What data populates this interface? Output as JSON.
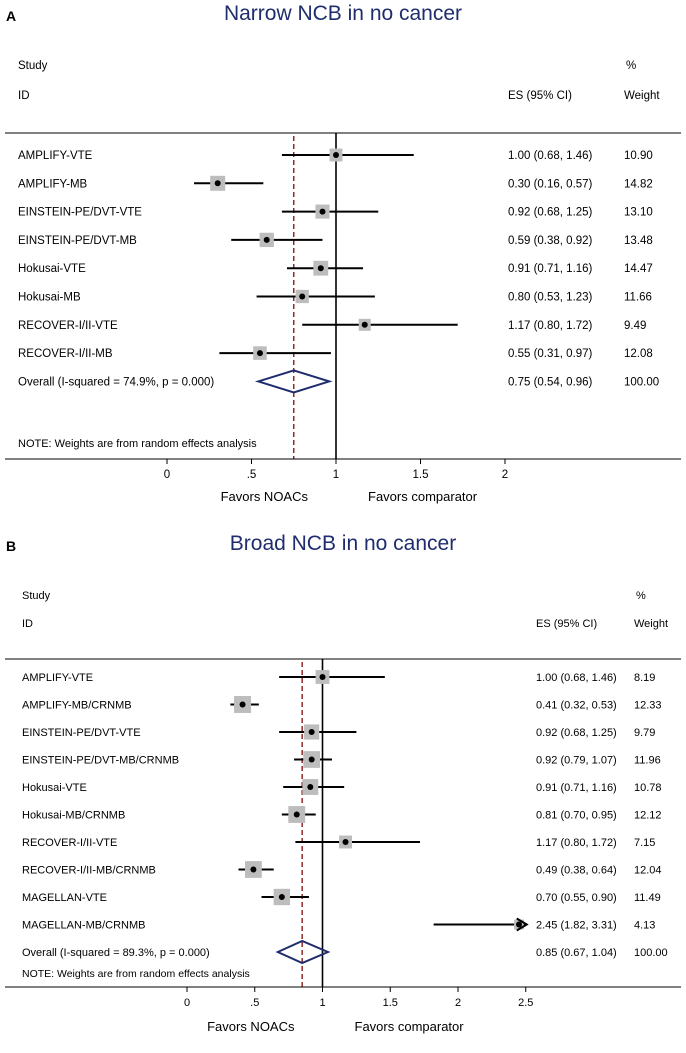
{
  "chart_data": [
    {
      "type": "forest",
      "panel_label": "A",
      "title": "Narrow NCB in no cancer",
      "header": {
        "study": "Study",
        "id": "ID",
        "es": "ES (95% CI)",
        "pct": "%",
        "weight": "Weight"
      },
      "studies": [
        {
          "name": "AMPLIFY-VTE",
          "es": 1.0,
          "lo": 0.68,
          "hi": 1.46,
          "es_text": "1.00 (0.68, 1.46)",
          "weight": 10.9,
          "weight_text": "10.90"
        },
        {
          "name": "AMPLIFY-MB",
          "es": 0.3,
          "lo": 0.16,
          "hi": 0.57,
          "es_text": "0.30 (0.16, 0.57)",
          "weight": 14.82,
          "weight_text": "14.82"
        },
        {
          "name": "EINSTEIN-PE/DVT-VTE",
          "es": 0.92,
          "lo": 0.68,
          "hi": 1.25,
          "es_text": "0.92 (0.68, 1.25)",
          "weight": 13.1,
          "weight_text": "13.10"
        },
        {
          "name": "EINSTEIN-PE/DVT-MB",
          "es": 0.59,
          "lo": 0.38,
          "hi": 0.92,
          "es_text": "0.59 (0.38, 0.92)",
          "weight": 13.48,
          "weight_text": "13.48"
        },
        {
          "name": "Hokusai-VTE",
          "es": 0.91,
          "lo": 0.71,
          "hi": 1.16,
          "es_text": "0.91 (0.71, 1.16)",
          "weight": 14.47,
          "weight_text": "14.47"
        },
        {
          "name": "Hokusai-MB",
          "es": 0.8,
          "lo": 0.53,
          "hi": 1.23,
          "es_text": "0.80 (0.53, 1.23)",
          "weight": 11.66,
          "weight_text": "11.66"
        },
        {
          "name": "RECOVER-I/II-VTE",
          "es": 1.17,
          "lo": 0.8,
          "hi": 1.72,
          "es_text": "1.17 (0.80, 1.72)",
          "weight": 9.49,
          "weight_text": "9.49"
        },
        {
          "name": "RECOVER-I/II-MB",
          "es": 0.55,
          "lo": 0.31,
          "hi": 0.97,
          "es_text": "0.55 (0.31, 0.97)",
          "weight": 12.08,
          "weight_text": "12.08"
        }
      ],
      "overall": {
        "label": "Overall  (I-squared = 74.9%, p = 0.000)",
        "es": 0.75,
        "lo": 0.54,
        "hi": 0.96,
        "es_text": "0.75 (0.54, 0.96)",
        "weight_text": "100.00"
      },
      "note": "NOTE: Weights are from random effects analysis",
      "xticks": [
        0,
        0.5,
        1,
        1.5,
        2
      ],
      "xtick_labels": [
        "0",
        ".5",
        "1",
        "1.5",
        "2"
      ],
      "xlim": [
        0,
        2
      ],
      "favors_left": "Favors NOACs",
      "favors_right": "Favors comparator",
      "colors": {
        "title": "#1f2d6e",
        "ref_line": "#8b1a1a",
        "box": "#bdbdbd",
        "diamond": "#1f2d6e"
      }
    },
    {
      "type": "forest",
      "panel_label": "B",
      "title": "Broad NCB in no cancer",
      "header": {
        "study": "Study",
        "id": "ID",
        "es": "ES (95% CI)",
        "pct": "%",
        "weight": "Weight"
      },
      "studies": [
        {
          "name": "AMPLIFY-VTE",
          "es": 1.0,
          "lo": 0.68,
          "hi": 1.46,
          "es_text": "1.00 (0.68, 1.46)",
          "weight": 8.19,
          "weight_text": "8.19"
        },
        {
          "name": "AMPLIFY-MB/CRNMB",
          "es": 0.41,
          "lo": 0.32,
          "hi": 0.53,
          "es_text": "0.41 (0.32, 0.53)",
          "weight": 12.33,
          "weight_text": "12.33"
        },
        {
          "name": "EINSTEIN-PE/DVT-VTE",
          "es": 0.92,
          "lo": 0.68,
          "hi": 1.25,
          "es_text": "0.92 (0.68, 1.25)",
          "weight": 9.79,
          "weight_text": "9.79"
        },
        {
          "name": "EINSTEIN-PE/DVT-MB/CRNMB",
          "es": 0.92,
          "lo": 0.79,
          "hi": 1.07,
          "es_text": "0.92 (0.79, 1.07)",
          "weight": 11.96,
          "weight_text": "11.96"
        },
        {
          "name": "Hokusai-VTE",
          "es": 0.91,
          "lo": 0.71,
          "hi": 1.16,
          "es_text": "0.91 (0.71, 1.16)",
          "weight": 10.78,
          "weight_text": "10.78"
        },
        {
          "name": "Hokusai-MB/CRNMB",
          "es": 0.81,
          "lo": 0.7,
          "hi": 0.95,
          "es_text": "0.81 (0.70, 0.95)",
          "weight": 12.12,
          "weight_text": "12.12"
        },
        {
          "name": "RECOVER-I/II-VTE",
          "es": 1.17,
          "lo": 0.8,
          "hi": 1.72,
          "es_text": "1.17 (0.80, 1.72)",
          "weight": 7.15,
          "weight_text": "7.15"
        },
        {
          "name": "RECOVER-I/II-MB/CRNMB",
          "es": 0.49,
          "lo": 0.38,
          "hi": 0.64,
          "es_text": "0.49 (0.38, 0.64)",
          "weight": 12.04,
          "weight_text": "12.04"
        },
        {
          "name": "MAGELLAN-VTE",
          "es": 0.7,
          "lo": 0.55,
          "hi": 0.9,
          "es_text": "0.70 (0.55, 0.90)",
          "weight": 11.49,
          "weight_text": "11.49"
        },
        {
          "name": "MAGELLAN-MB/CRNMB",
          "es": 2.45,
          "lo": 1.82,
          "hi": 3.31,
          "es_text": "2.45 (1.82, 3.31)",
          "weight": 4.13,
          "weight_text": "4.13",
          "arrow_right": true
        }
      ],
      "overall": {
        "label": "Overall  (I-squared = 89.3%, p = 0.000)",
        "es": 0.85,
        "lo": 0.67,
        "hi": 1.04,
        "es_text": "0.85 (0.67, 1.04)",
        "weight_text": "100.00"
      },
      "note": "NOTE: Weights are from random effects analysis",
      "xticks": [
        0,
        0.5,
        1,
        1.5,
        2,
        2.5
      ],
      "xtick_labels": [
        "0",
        ".5",
        "1",
        "1.5",
        "2",
        "2.5"
      ],
      "xlim": [
        0,
        2.5
      ],
      "favors_left": "Favors NOACs",
      "favors_right": "Favors comparator",
      "colors": {
        "title": "#1f2d6e",
        "ref_line": "#8b1a1a",
        "box": "#bdbdbd",
        "diamond": "#1f2d6e"
      }
    }
  ]
}
